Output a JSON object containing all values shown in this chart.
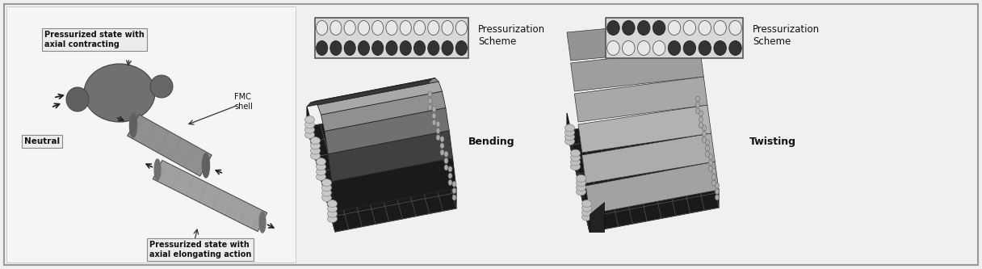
{
  "background_color": "#e8e8e8",
  "border_color": "#999999",
  "fig_width": 12.16,
  "fig_height": 3.33,
  "dpi": 100,
  "labels": {
    "pressurized_contracting": "Pressurized state with\naxial contracting",
    "neutral": "Neutral",
    "pressurized_elongating": "Pressurized state with\naxial elongating action",
    "fmc_shell": "FMC\nshell",
    "pressurization_scheme": "Pressurization\nScheme",
    "bending": "Bending",
    "twisting": "Twisting"
  },
  "image_bg": "#f0f0f0"
}
